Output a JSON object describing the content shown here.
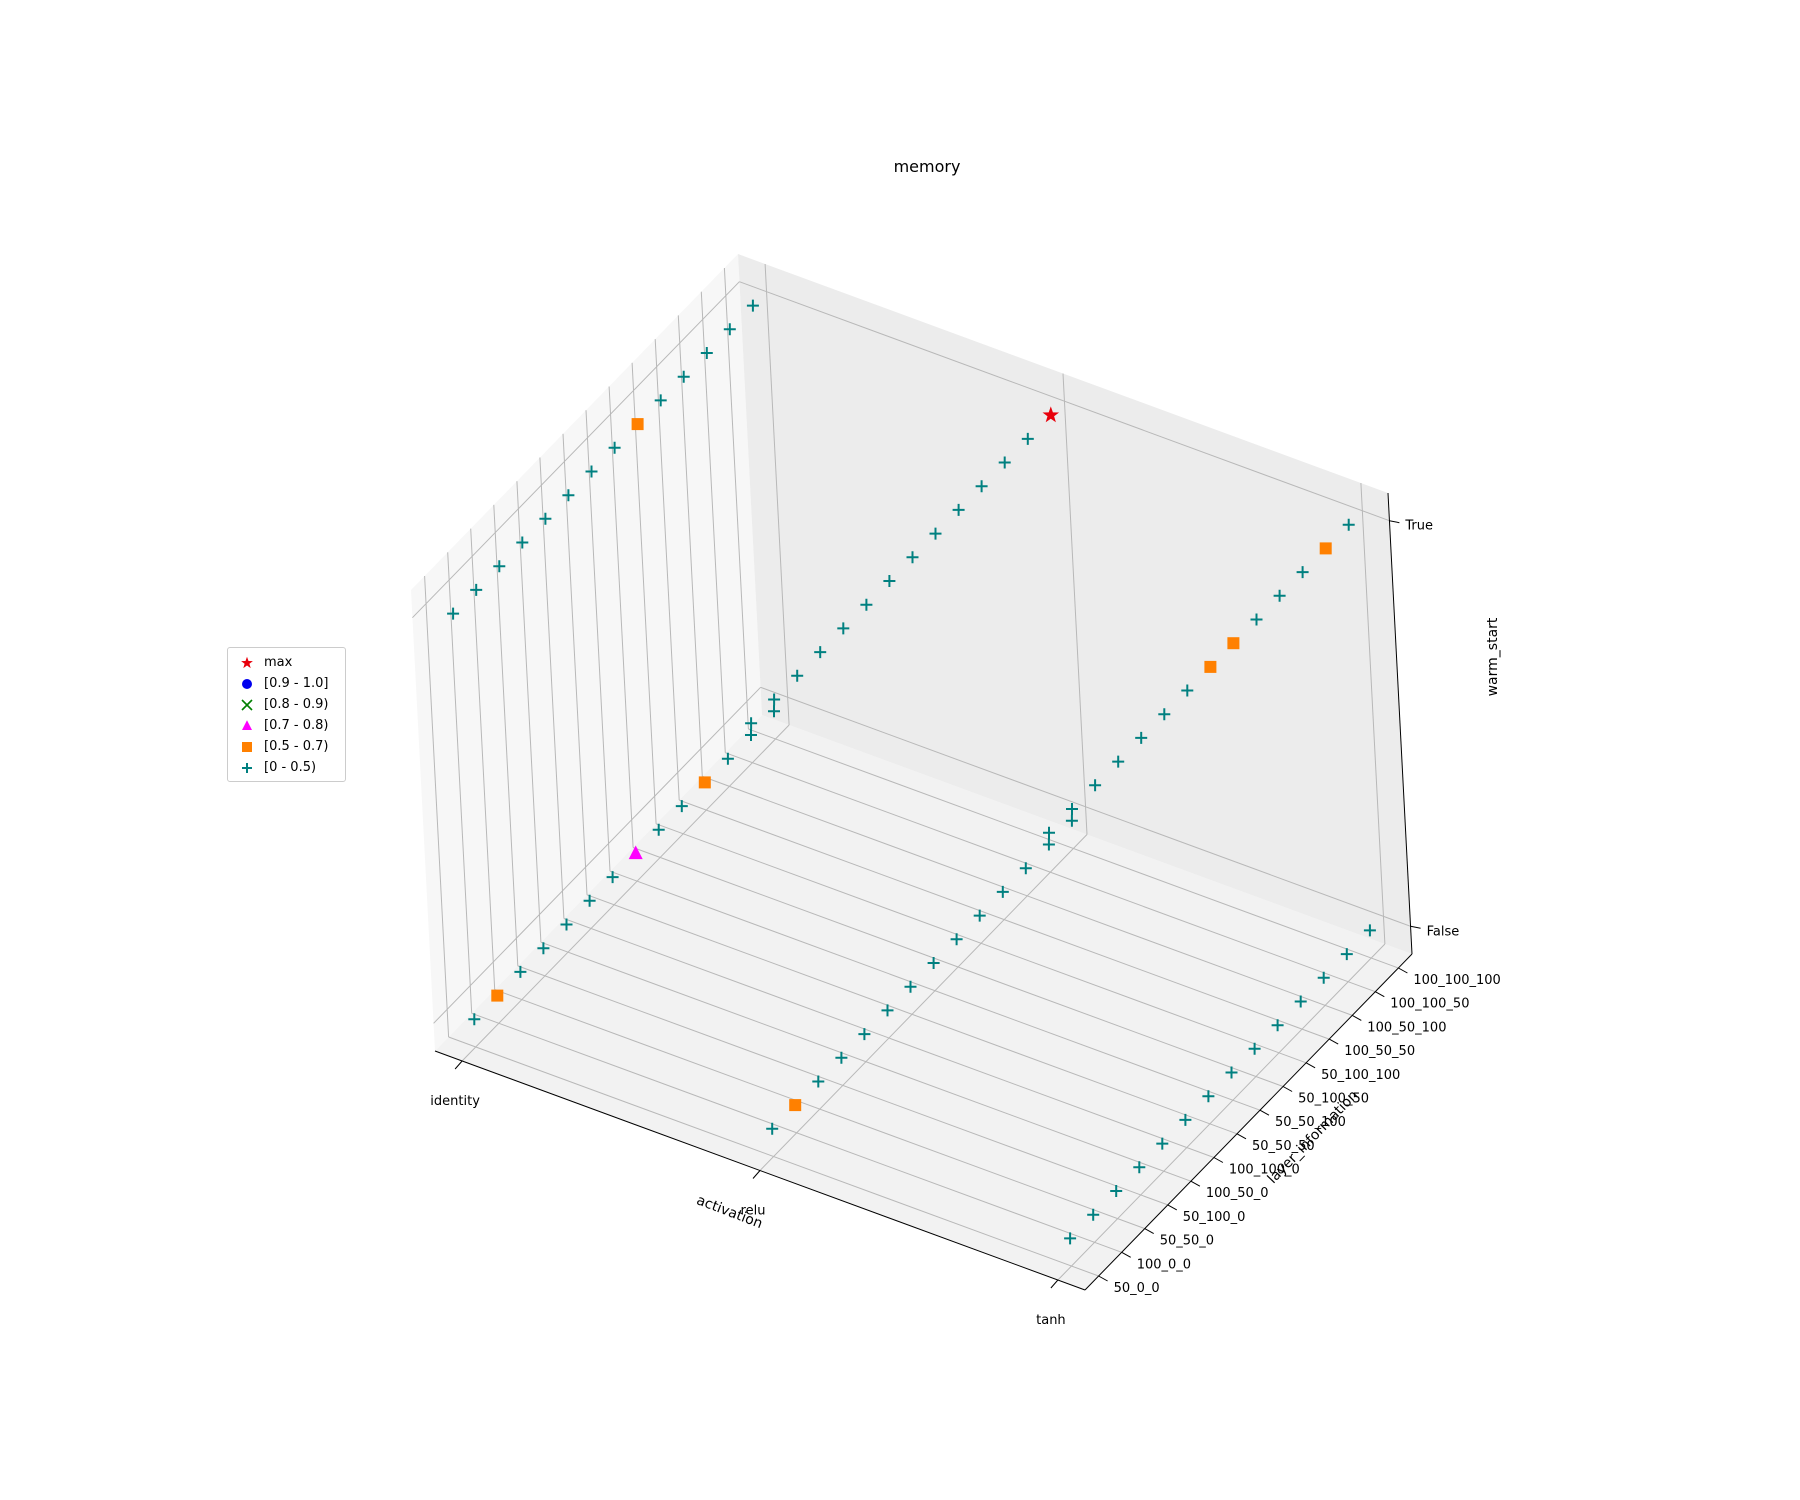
{
  "chart_data": {
    "type": "scatter3d",
    "title": "memory",
    "xlabel": "activation",
    "ylabel": "layer_information",
    "zlabel": "warm_start",
    "x_categories": [
      "identity",
      "relu",
      "tanh"
    ],
    "y_categories": [
      "50_0_0",
      "100_0_0",
      "50_50_0",
      "50_100_0",
      "100_50_0",
      "100_100_0",
      "50_50_50",
      "50_50_100",
      "50_100_50",
      "50_100_100",
      "100_50_50",
      "100_50_100",
      "100_100_50",
      "100_100_100"
    ],
    "z_categories": [
      "False",
      "True"
    ],
    "legend": [
      {
        "label": "max",
        "marker": "star",
        "color": "#e8000b"
      },
      {
        "label": "[0.9 - 1.0]",
        "marker": "circle",
        "color": "#0000ee"
      },
      {
        "label": "[0.8 - 0.9)",
        "marker": "x",
        "color": "#008000"
      },
      {
        "label": "[0.7 - 0.8)",
        "marker": "triangle",
        "color": "#ff00ff"
      },
      {
        "label": "[0.5 - 0.7)",
        "marker": "square",
        "color": "#ff8000"
      },
      {
        "label": "[0 - 0.5)",
        "marker": "plus",
        "color": "#008080"
      }
    ],
    "points": [
      {
        "activation": "identity",
        "layer_information": "50_0_0",
        "warm_start": "False",
        "group": "[0 - 0.5)"
      },
      {
        "activation": "identity",
        "layer_information": "100_0_0",
        "warm_start": "False",
        "group": "[0.5 - 0.7)"
      },
      {
        "activation": "identity",
        "layer_information": "50_50_0",
        "warm_start": "False",
        "group": "[0 - 0.5)"
      },
      {
        "activation": "identity",
        "layer_information": "50_100_0",
        "warm_start": "False",
        "group": "[0 - 0.5)"
      },
      {
        "activation": "identity",
        "layer_information": "100_50_0",
        "warm_start": "False",
        "group": "[0 - 0.5)"
      },
      {
        "activation": "identity",
        "layer_information": "100_100_0",
        "warm_start": "False",
        "group": "[0 - 0.5)"
      },
      {
        "activation": "identity",
        "layer_information": "50_50_50",
        "warm_start": "False",
        "group": "[0 - 0.5)"
      },
      {
        "activation": "identity",
        "layer_information": "50_50_100",
        "warm_start": "False",
        "group": "[0.7 - 0.8)"
      },
      {
        "activation": "identity",
        "layer_information": "50_100_50",
        "warm_start": "False",
        "group": "[0 - 0.5)"
      },
      {
        "activation": "identity",
        "layer_information": "50_100_100",
        "warm_start": "False",
        "group": "[0 - 0.5)"
      },
      {
        "activation": "identity",
        "layer_information": "100_50_50",
        "warm_start": "False",
        "group": "[0.5 - 0.7)"
      },
      {
        "activation": "identity",
        "layer_information": "100_50_100",
        "warm_start": "False",
        "group": "[0 - 0.5)"
      },
      {
        "activation": "identity",
        "layer_information": "100_100_50",
        "warm_start": "False",
        "group": "[0 - 0.5)"
      },
      {
        "activation": "identity",
        "layer_information": "100_100_100",
        "warm_start": "False",
        "group": "[0 - 0.5)"
      },
      {
        "activation": "identity",
        "layer_information": "50_0_0",
        "warm_start": "True",
        "group": "[0 - 0.5)"
      },
      {
        "activation": "identity",
        "layer_information": "100_0_0",
        "warm_start": "True",
        "group": "[0 - 0.5)"
      },
      {
        "activation": "identity",
        "layer_information": "50_50_0",
        "warm_start": "True",
        "group": "[0 - 0.5)"
      },
      {
        "activation": "identity",
        "layer_information": "50_100_0",
        "warm_start": "True",
        "group": "[0 - 0.5)"
      },
      {
        "activation": "identity",
        "layer_information": "100_50_0",
        "warm_start": "True",
        "group": "[0 - 0.5)"
      },
      {
        "activation": "identity",
        "layer_information": "100_100_0",
        "warm_start": "True",
        "group": "[0 - 0.5)"
      },
      {
        "activation": "identity",
        "layer_information": "50_50_50",
        "warm_start": "True",
        "group": "[0 - 0.5)"
      },
      {
        "activation": "identity",
        "layer_information": "50_50_100",
        "warm_start": "True",
        "group": "[0 - 0.5)"
      },
      {
        "activation": "identity",
        "layer_information": "50_100_50",
        "warm_start": "True",
        "group": "[0.5 - 0.7)"
      },
      {
        "activation": "identity",
        "layer_information": "50_100_100",
        "warm_start": "True",
        "group": "[0 - 0.5)"
      },
      {
        "activation": "identity",
        "layer_information": "100_50_50",
        "warm_start": "True",
        "group": "[0 - 0.5)"
      },
      {
        "activation": "identity",
        "layer_information": "100_50_100",
        "warm_start": "True",
        "group": "[0 - 0.5)"
      },
      {
        "activation": "identity",
        "layer_information": "100_100_50",
        "warm_start": "True",
        "group": "[0 - 0.5)"
      },
      {
        "activation": "identity",
        "layer_information": "100_100_100",
        "warm_start": "True",
        "group": "[0 - 0.5)"
      },
      {
        "activation": "relu",
        "layer_information": "50_0_0",
        "warm_start": "False",
        "group": "[0 - 0.5)"
      },
      {
        "activation": "relu",
        "layer_information": "100_0_0",
        "warm_start": "False",
        "group": "[0.5 - 0.7)"
      },
      {
        "activation": "relu",
        "layer_information": "50_50_0",
        "warm_start": "False",
        "group": "[0 - 0.5)"
      },
      {
        "activation": "relu",
        "layer_information": "50_100_0",
        "warm_start": "False",
        "group": "[0 - 0.5)"
      },
      {
        "activation": "relu",
        "layer_information": "100_50_0",
        "warm_start": "False",
        "group": "[0 - 0.5)"
      },
      {
        "activation": "relu",
        "layer_information": "100_100_0",
        "warm_start": "False",
        "group": "[0 - 0.5)"
      },
      {
        "activation": "relu",
        "layer_information": "50_50_50",
        "warm_start": "False",
        "group": "[0 - 0.5)"
      },
      {
        "activation": "relu",
        "layer_information": "50_50_100",
        "warm_start": "False",
        "group": "[0 - 0.5)"
      },
      {
        "activation": "relu",
        "layer_information": "50_100_50",
        "warm_start": "False",
        "group": "[0 - 0.5)"
      },
      {
        "activation": "relu",
        "layer_information": "50_100_100",
        "warm_start": "False",
        "group": "[0 - 0.5)"
      },
      {
        "activation": "relu",
        "layer_information": "100_50_50",
        "warm_start": "False",
        "group": "[0 - 0.5)"
      },
      {
        "activation": "relu",
        "layer_information": "100_50_100",
        "warm_start": "False",
        "group": "[0 - 0.5)"
      },
      {
        "activation": "relu",
        "layer_information": "100_100_50",
        "warm_start": "False",
        "group": "[0 - 0.5)"
      },
      {
        "activation": "relu",
        "layer_information": "100_100_100",
        "warm_start": "False",
        "group": "[0 - 0.5)"
      },
      {
        "activation": "relu",
        "layer_information": "50_0_0",
        "warm_start": "True",
        "group": "[0 - 0.5)"
      },
      {
        "activation": "relu",
        "layer_information": "100_0_0",
        "warm_start": "True",
        "group": "[0 - 0.5)"
      },
      {
        "activation": "relu",
        "layer_information": "50_50_0",
        "warm_start": "True",
        "group": "[0 - 0.5)"
      },
      {
        "activation": "relu",
        "layer_information": "50_100_0",
        "warm_start": "True",
        "group": "[0 - 0.5)"
      },
      {
        "activation": "relu",
        "layer_information": "100_50_0",
        "warm_start": "True",
        "group": "[0 - 0.5)"
      },
      {
        "activation": "relu",
        "layer_information": "100_100_0",
        "warm_start": "True",
        "group": "[0 - 0.5)"
      },
      {
        "activation": "relu",
        "layer_information": "50_50_50",
        "warm_start": "True",
        "group": "[0 - 0.5)"
      },
      {
        "activation": "relu",
        "layer_information": "50_50_100",
        "warm_start": "True",
        "group": "[0 - 0.5)"
      },
      {
        "activation": "relu",
        "layer_information": "50_100_50",
        "warm_start": "True",
        "group": "[0 - 0.5)"
      },
      {
        "activation": "relu",
        "layer_information": "50_100_100",
        "warm_start": "True",
        "group": "[0 - 0.5)"
      },
      {
        "activation": "relu",
        "layer_information": "100_50_50",
        "warm_start": "True",
        "group": "[0 - 0.5)"
      },
      {
        "activation": "relu",
        "layer_information": "100_50_100",
        "warm_start": "True",
        "group": "[0 - 0.5)"
      },
      {
        "activation": "relu",
        "layer_information": "100_100_50",
        "warm_start": "True",
        "group": "[0 - 0.5)"
      },
      {
        "activation": "relu",
        "layer_information": "100_100_100",
        "warm_start": "True",
        "group": "max"
      },
      {
        "activation": "tanh",
        "layer_information": "50_0_0",
        "warm_start": "False",
        "group": "[0 - 0.5)"
      },
      {
        "activation": "tanh",
        "layer_information": "100_0_0",
        "warm_start": "False",
        "group": "[0 - 0.5)"
      },
      {
        "activation": "tanh",
        "layer_information": "50_50_0",
        "warm_start": "False",
        "group": "[0 - 0.5)"
      },
      {
        "activation": "tanh",
        "layer_information": "50_100_0",
        "warm_start": "False",
        "group": "[0 - 0.5)"
      },
      {
        "activation": "tanh",
        "layer_information": "100_50_0",
        "warm_start": "False",
        "group": "[0 - 0.5)"
      },
      {
        "activation": "tanh",
        "layer_information": "100_100_0",
        "warm_start": "False",
        "group": "[0 - 0.5)"
      },
      {
        "activation": "tanh",
        "layer_information": "50_50_50",
        "warm_start": "False",
        "group": "[0 - 0.5)"
      },
      {
        "activation": "tanh",
        "layer_information": "50_50_100",
        "warm_start": "False",
        "group": "[0 - 0.5)"
      },
      {
        "activation": "tanh",
        "layer_information": "50_100_50",
        "warm_start": "False",
        "group": "[0 - 0.5)"
      },
      {
        "activation": "tanh",
        "layer_information": "50_100_100",
        "warm_start": "False",
        "group": "[0 - 0.5)"
      },
      {
        "activation": "tanh",
        "layer_information": "100_50_50",
        "warm_start": "False",
        "group": "[0 - 0.5)"
      },
      {
        "activation": "tanh",
        "layer_information": "100_50_100",
        "warm_start": "False",
        "group": "[0 - 0.5)"
      },
      {
        "activation": "tanh",
        "layer_information": "100_100_50",
        "warm_start": "False",
        "group": "[0 - 0.5)"
      },
      {
        "activation": "tanh",
        "layer_information": "100_100_100",
        "warm_start": "False",
        "group": "[0 - 0.5)"
      },
      {
        "activation": "tanh",
        "layer_information": "50_0_0",
        "warm_start": "True",
        "group": "[0 - 0.5)"
      },
      {
        "activation": "tanh",
        "layer_information": "100_0_0",
        "warm_start": "True",
        "group": "[0 - 0.5)"
      },
      {
        "activation": "tanh",
        "layer_information": "50_50_0",
        "warm_start": "True",
        "group": "[0 - 0.5)"
      },
      {
        "activation": "tanh",
        "layer_information": "50_100_0",
        "warm_start": "True",
        "group": "[0 - 0.5)"
      },
      {
        "activation": "tanh",
        "layer_information": "100_50_0",
        "warm_start": "True",
        "group": "[0 - 0.5)"
      },
      {
        "activation": "tanh",
        "layer_information": "100_100_0",
        "warm_start": "True",
        "group": "[0 - 0.5)"
      },
      {
        "activation": "tanh",
        "layer_information": "50_50_50",
        "warm_start": "True",
        "group": "[0 - 0.5)"
      },
      {
        "activation": "tanh",
        "layer_information": "50_50_100",
        "warm_start": "True",
        "group": "[0.5 - 0.7)"
      },
      {
        "activation": "tanh",
        "layer_information": "50_100_50",
        "warm_start": "True",
        "group": "[0.5 - 0.7)"
      },
      {
        "activation": "tanh",
        "layer_information": "50_100_100",
        "warm_start": "True",
        "group": "[0 - 0.5)"
      },
      {
        "activation": "tanh",
        "layer_information": "100_50_50",
        "warm_start": "True",
        "group": "[0 - 0.5)"
      },
      {
        "activation": "tanh",
        "layer_information": "100_50_100",
        "warm_start": "True",
        "group": "[0 - 0.5)"
      },
      {
        "activation": "tanh",
        "layer_information": "100_100_50",
        "warm_start": "True",
        "group": "[0.5 - 0.7)"
      },
      {
        "activation": "tanh",
        "layer_information": "100_100_100",
        "warm_start": "True",
        "group": "[0 - 0.5)"
      }
    ]
  }
}
